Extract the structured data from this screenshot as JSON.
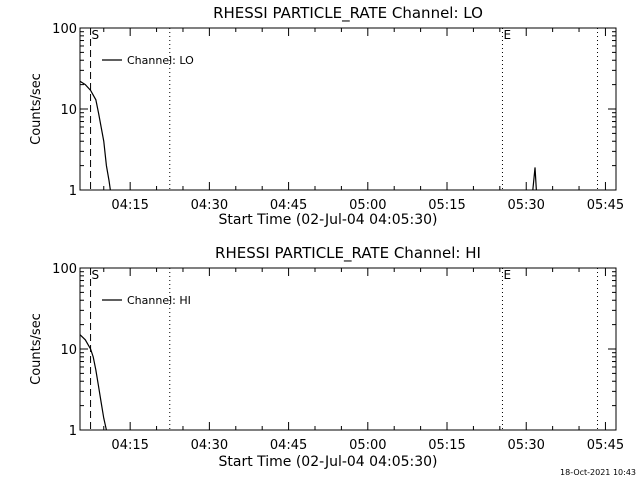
{
  "footer_timestamp": "18-Oct-2021 10:43",
  "chart_data": [
    {
      "type": "line",
      "title": "RHESSI PARTICLE_RATE Channel: LO",
      "xlabel": "Start Time (02-Jul-04 04:05:30)",
      "ylabel": "Counts/sec",
      "y_scale": "log",
      "ylim": [
        1,
        100
      ],
      "y_ticks": [
        "1",
        "10",
        "100"
      ],
      "xlim": [
        "04:05:30",
        "05:47:00"
      ],
      "x_ticks": [
        "04:15",
        "04:30",
        "04:45",
        "05:00",
        "05:15",
        "05:30",
        "05:45"
      ],
      "legend": "top-left",
      "series": [
        {
          "name": "Channel: LO",
          "points": [
            {
              "x": "04:05:30",
              "y": 22
            },
            {
              "x": "04:06:30",
              "y": 20
            },
            {
              "x": "04:07:30",
              "y": 17
            },
            {
              "x": "04:08:30",
              "y": 13
            },
            {
              "x": "04:09:00",
              "y": 9
            },
            {
              "x": "04:09:30",
              "y": 6
            },
            {
              "x": "04:10:00",
              "y": 4
            },
            {
              "x": "04:10:30",
              "y": 2
            },
            {
              "x": "04:11:00",
              "y": 1.3
            },
            {
              "x": "04:11:15",
              "y": 1
            }
          ]
        },
        {
          "name": "",
          "points": [
            {
              "x": "05:31:15",
              "y": 1
            },
            {
              "x": "05:31:40",
              "y": 1.9
            },
            {
              "x": "05:31:55",
              "y": 1
            }
          ]
        }
      ],
      "markers": [
        {
          "x": "04:07:30",
          "style": "dashed",
          "label": "S"
        },
        {
          "x": "04:22:30",
          "style": "dotted",
          "label": ""
        },
        {
          "x": "05:25:30",
          "style": "dotted",
          "label": "E"
        },
        {
          "x": "05:43:30",
          "style": "dotted",
          "label": ""
        }
      ]
    },
    {
      "type": "line",
      "title": "RHESSI PARTICLE_RATE Channel: HI",
      "xlabel": "Start Time (02-Jul-04 04:05:30)",
      "ylabel": "Counts/sec",
      "y_scale": "log",
      "ylim": [
        1,
        100
      ],
      "y_ticks": [
        "1",
        "10",
        "100"
      ],
      "xlim": [
        "04:05:30",
        "05:47:00"
      ],
      "x_ticks": [
        "04:15",
        "04:30",
        "04:45",
        "05:00",
        "05:15",
        "05:30",
        "05:45"
      ],
      "legend": "top-left",
      "series": [
        {
          "name": "Channel: HI",
          "points": [
            {
              "x": "04:05:30",
              "y": 15
            },
            {
              "x": "04:06:30",
              "y": 13
            },
            {
              "x": "04:07:30",
              "y": 10
            },
            {
              "x": "04:08:00",
              "y": 8
            },
            {
              "x": "04:08:30",
              "y": 5.5
            },
            {
              "x": "04:09:00",
              "y": 3.5
            },
            {
              "x": "04:09:30",
              "y": 2.2
            },
            {
              "x": "04:10:00",
              "y": 1.4
            },
            {
              "x": "04:10:30",
              "y": 1
            }
          ]
        }
      ],
      "markers": [
        {
          "x": "04:07:30",
          "style": "dashed",
          "label": "S"
        },
        {
          "x": "04:22:30",
          "style": "dotted",
          "label": ""
        },
        {
          "x": "05:25:30",
          "style": "dotted",
          "label": "E"
        },
        {
          "x": "05:43:30",
          "style": "dotted",
          "label": ""
        }
      ]
    }
  ]
}
